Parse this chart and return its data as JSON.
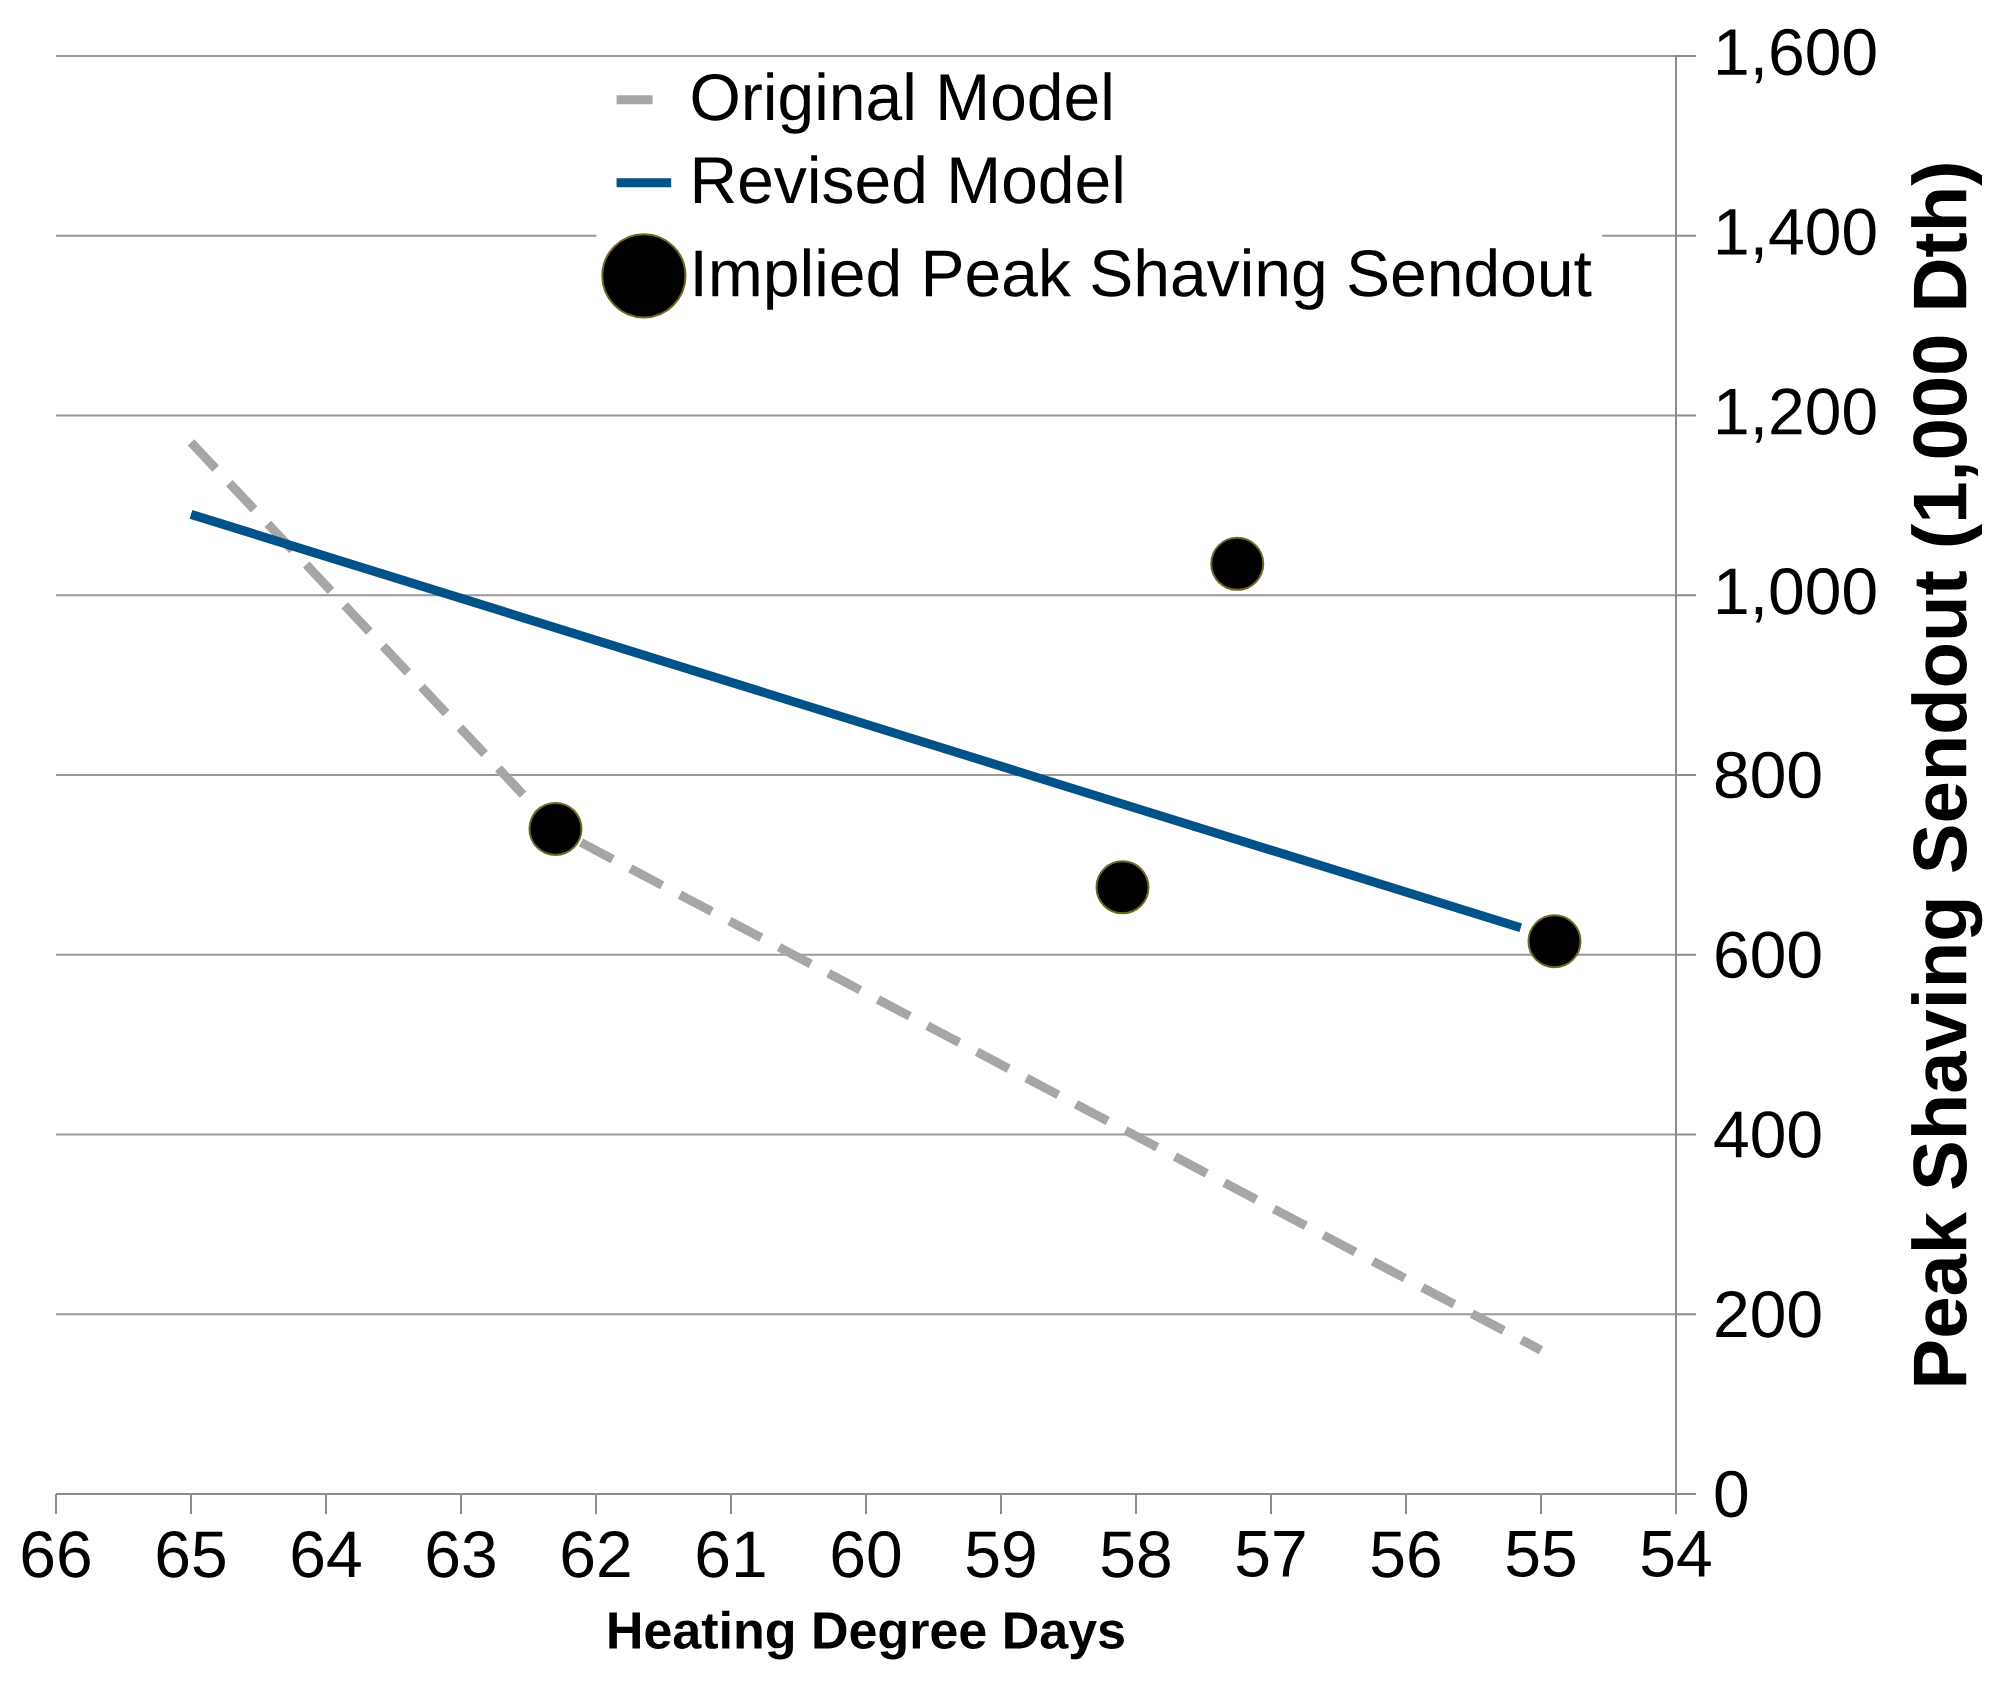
{
  "chart_data": {
    "type": "line",
    "xlabel": "Heating Degree Days",
    "ylabel": "Peak Shaving Sendout (1,000 Dth)",
    "xlim": [
      66,
      54
    ],
    "xticks": [
      66,
      65,
      64,
      63,
      62,
      61,
      60,
      59,
      58,
      57,
      56,
      55,
      54
    ],
    "ylim": [
      0,
      1600
    ],
    "yticks": [
      0,
      200,
      400,
      600,
      800,
      {
        "value": 1000,
        "label": "1,000"
      },
      {
        "value": 1200,
        "label": "1,200"
      },
      {
        "value": 1400,
        "label": "1,400"
      },
      {
        "value": 1600,
        "label": "1,600"
      }
    ],
    "grid": "y",
    "legend": "top right",
    "series": [
      {
        "name": "Original Model",
        "line_style": "dashed",
        "marker": "none",
        "color": "#a6a6a6",
        "x": [
          65,
          62.3,
          55
        ],
        "values": [
          1170,
          740,
          160
        ]
      },
      {
        "name": "Revised Model",
        "line_style": "solid",
        "marker": "none",
        "color": "#005288",
        "x": [
          65,
          55.15
        ],
        "values": [
          1090,
          630
        ]
      },
      {
        "name": "Implied Peak Shaving Sendout",
        "type": "scatter",
        "marker": "circle",
        "color": "#000000",
        "x": [
          62.3,
          58.1,
          57.25,
          54.9
        ],
        "values": [
          740,
          675,
          1035,
          615
        ]
      }
    ]
  }
}
